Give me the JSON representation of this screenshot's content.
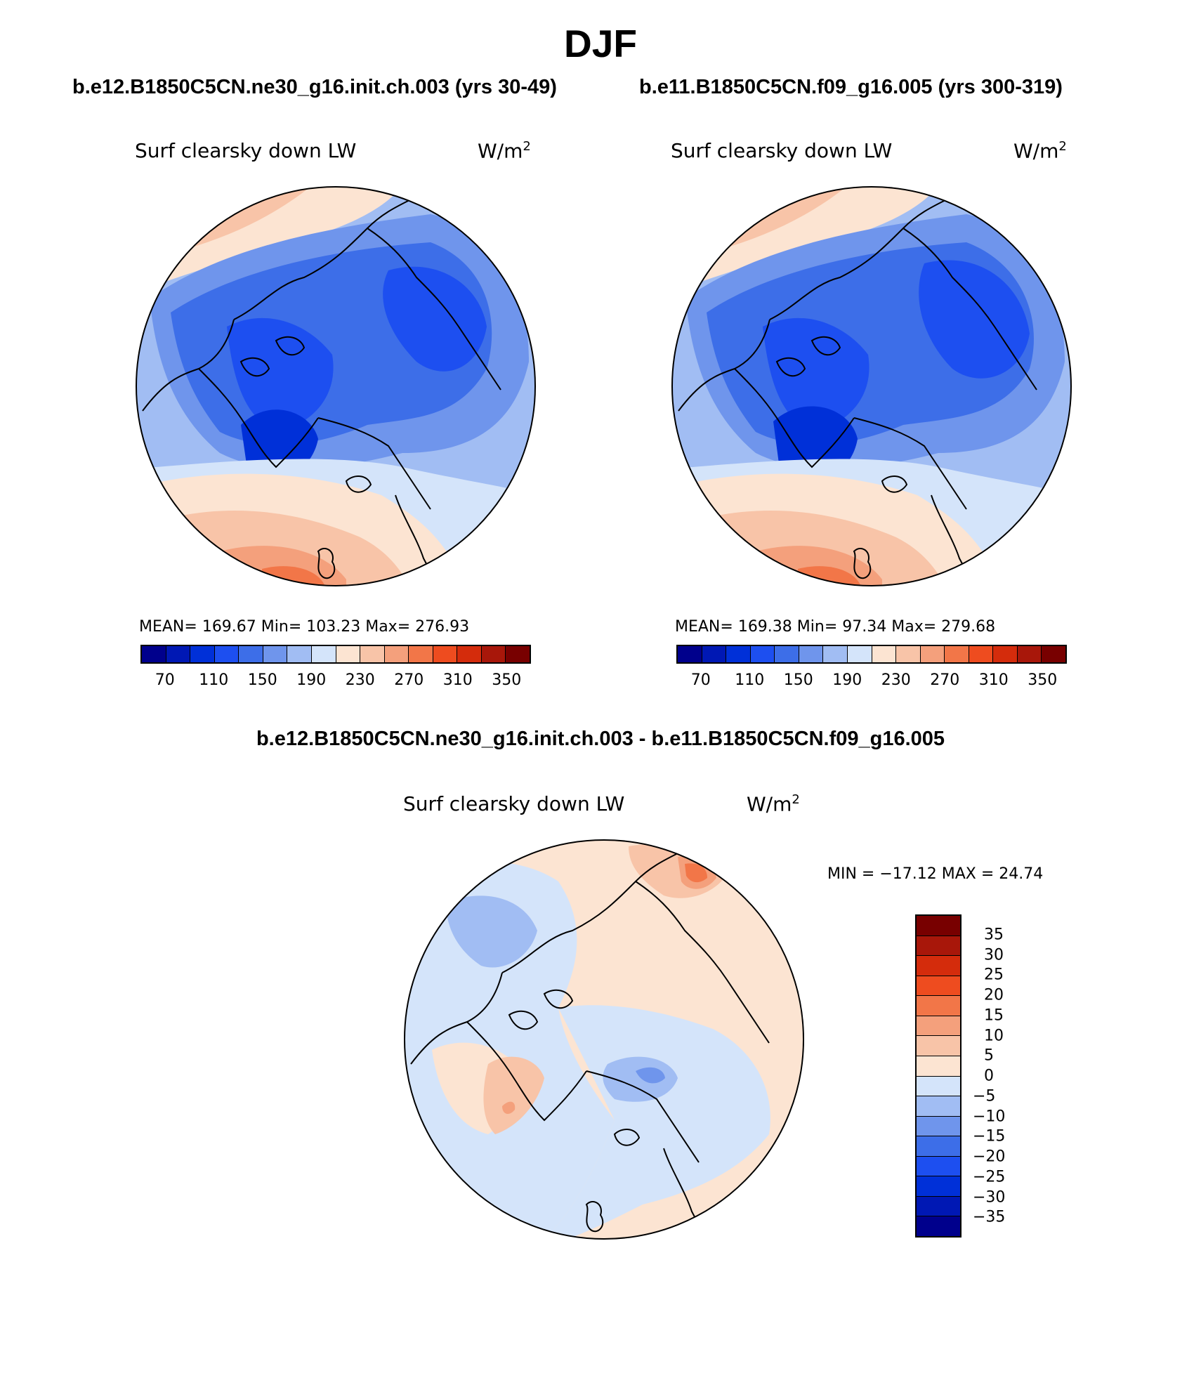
{
  "title": "DJF",
  "case_left": "b.e12.B1850C5CN.ne30_g16.init.ch.003 (yrs 30-49)",
  "case_right": "b.e11.B1850C5CN.f09_g16.005 (yrs 300-319)",
  "diff_title": "b.e12.B1850C5CN.ne30_g16.init.ch.003 - b.e11.B1850C5CN.f09_g16.005",
  "panels": [
    {
      "variable": "Surf clearsky down LW",
      "units": "W/m",
      "units_exp": "2",
      "stats": "MEAN= 169.67   Min= 103.23   Max= 276.93"
    },
    {
      "variable": "Surf clearsky down LW",
      "units": "W/m",
      "units_exp": "2",
      "stats": "MEAN= 169.38   Min=  97.34   Max= 279.68"
    },
    {
      "variable": "Surf clearsky down LW",
      "units": "W/m",
      "units_exp": "2",
      "stats": "MIN = −17.12 MAX =  24.74"
    }
  ],
  "abs_colorbar": {
    "colors": [
      "#00008c",
      "#0018b4",
      "#0030d8",
      "#1d4ff0",
      "#3d6ee8",
      "#6f95ec",
      "#a1bdf3",
      "#d4e4fa",
      "#fce4d2",
      "#f8c4a8",
      "#f4a07c",
      "#f27648",
      "#ee4c1f",
      "#d42c0c",
      "#a8170a",
      "#780000"
    ],
    "labels": [
      "70",
      "110",
      "150",
      "190",
      "230",
      "270",
      "310",
      "350"
    ]
  },
  "diff_colorbar": {
    "colors": [
      "#780000",
      "#a8170a",
      "#d42c0c",
      "#ee4c1f",
      "#f27648",
      "#f4a07c",
      "#f8c4a8",
      "#fce4d2",
      "#d4e4fa",
      "#a1bdf3",
      "#6f95ec",
      "#3d6ee8",
      "#1d4ff0",
      "#0030d8",
      "#0018b4",
      "#00008c"
    ],
    "labels": [
      "35",
      "30",
      "25",
      "20",
      "15",
      "10",
      "5",
      "0",
      "−5",
      "−10",
      "−15",
      "−20",
      "−25",
      "−30",
      "−35"
    ]
  }
}
